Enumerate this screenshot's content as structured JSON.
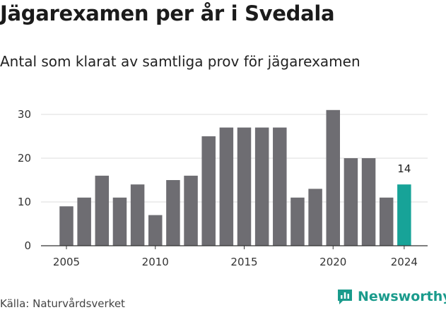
{
  "title": "Jägarexamen per år i Svedala",
  "subtitle": "Antal som klarat av samtliga prov för jägarexamen",
  "source": "Källa: Naturvårdsverket",
  "brand": "Newsworthy",
  "colors": {
    "bar": "#6e6d72",
    "highlight": "#17a398",
    "grid": "#dddddd",
    "axis": "#333333",
    "brand": "#1a9b8c"
  },
  "chart_data": {
    "type": "bar",
    "x": [
      2005,
      2006,
      2007,
      2008,
      2009,
      2010,
      2011,
      2012,
      2013,
      2014,
      2015,
      2016,
      2017,
      2018,
      2019,
      2020,
      2021,
      2022,
      2023,
      2024
    ],
    "values": [
      9,
      11,
      16,
      11,
      14,
      7,
      15,
      16,
      25,
      27,
      27,
      27,
      27,
      11,
      13,
      31,
      20,
      20,
      11,
      14
    ],
    "highlight": 2024,
    "highlight_label": "14",
    "ylim": [
      0,
      31
    ],
    "yticks": [
      0,
      10,
      20,
      30
    ],
    "xticks": [
      2005,
      2010,
      2015,
      2020,
      2024
    ],
    "grid": true
  }
}
